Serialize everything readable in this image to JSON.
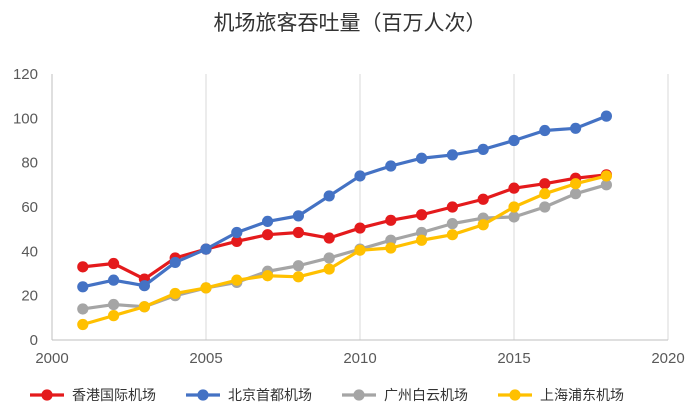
{
  "chart_data": {
    "type": "line",
    "title": "机场旅客吞吐量（百万人次）",
    "xlabel": "",
    "ylabel": "",
    "xlim": [
      2000,
      2020
    ],
    "ylim": [
      0,
      120
    ],
    "x_ticks": [
      2000,
      2005,
      2010,
      2015,
      2020
    ],
    "y_ticks": [
      0,
      20,
      40,
      60,
      80,
      100,
      120
    ],
    "grid": "vertical-lines",
    "legend_position": "bottom",
    "x": [
      2001,
      2002,
      2003,
      2004,
      2005,
      2006,
      2007,
      2008,
      2009,
      2010,
      2011,
      2012,
      2013,
      2014,
      2015,
      2016,
      2017,
      2018
    ],
    "series": [
      {
        "name": "香港国际机场",
        "color": "#e41a1c",
        "values": [
          33,
          34.5,
          27.5,
          37,
          41,
          44.5,
          47.5,
          48.5,
          46,
          50.5,
          54,
          56.5,
          60,
          63.5,
          68.5,
          70.5,
          73,
          74.5
        ]
      },
      {
        "name": "北京首都机场",
        "color": "#4472c4",
        "values": [
          24,
          27,
          24.5,
          35,
          41,
          48.5,
          53.5,
          56,
          65,
          74,
          78.5,
          82,
          83.5,
          86,
          90,
          94.5,
          95.5,
          101
        ]
      },
      {
        "name": "广州白云机场",
        "color": "#a5a5a5",
        "values": [
          14,
          16,
          15,
          20,
          23.5,
          26,
          31,
          33.5,
          37,
          41,
          45,
          48.5,
          52.5,
          55,
          55.5,
          60,
          66,
          70
        ]
      },
      {
        "name": "上海浦东机场",
        "color": "#ffc000",
        "values": [
          7,
          11,
          15,
          21,
          23.5,
          27,
          29,
          28.5,
          32,
          40.5,
          41.5,
          45,
          47.5,
          52,
          60,
          66,
          70.5,
          74
        ]
      }
    ]
  }
}
